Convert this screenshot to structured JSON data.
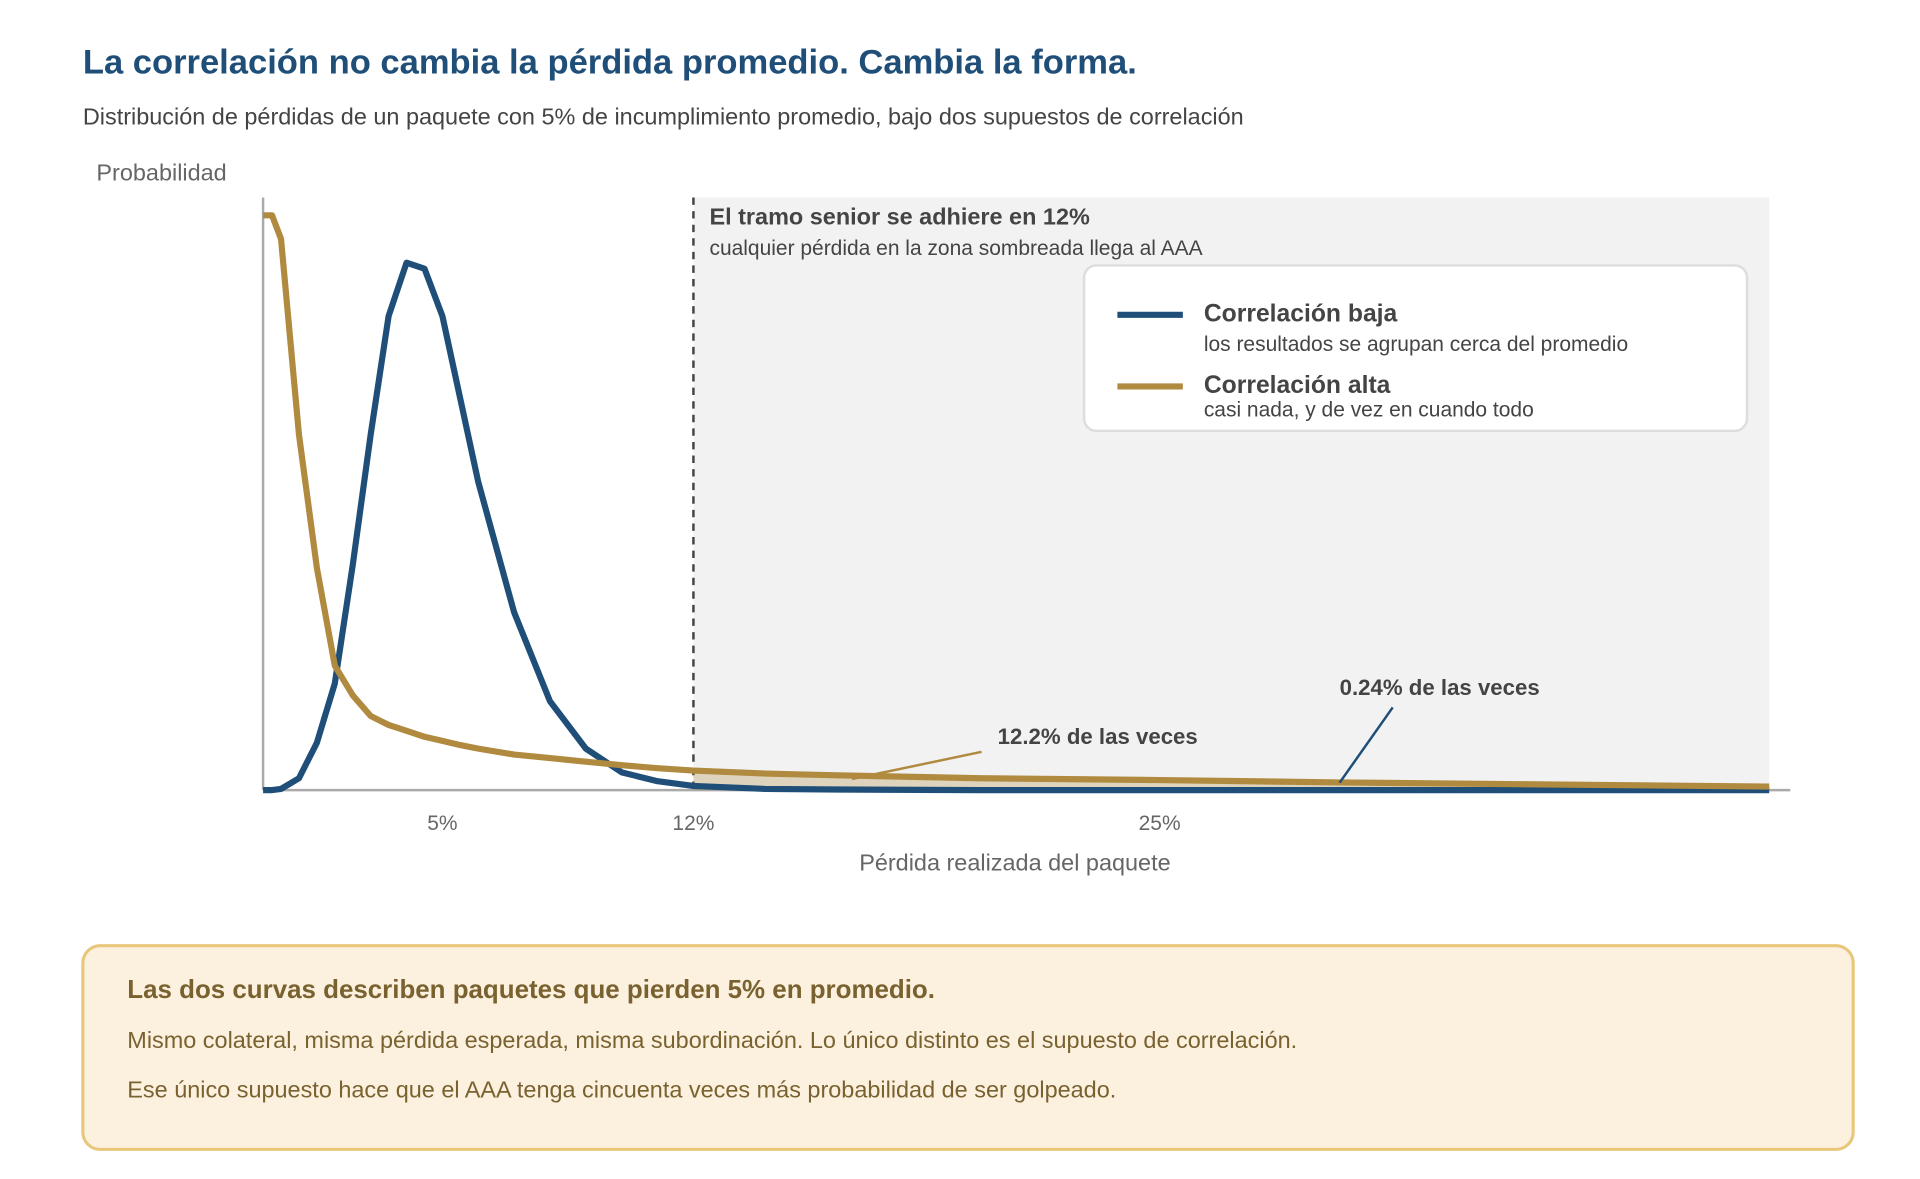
{
  "chart_data": {
    "type": "line",
    "title": "La correlación no cambia la pérdida promedio. Cambia la forma.",
    "subtitle": "Distribución de pérdidas de un paquete con 5% de incumplimiento promedio, bajo dos supuestos de correlación",
    "y_label": "Probabilidad",
    "x_label": "Pérdida realizada del paquete",
    "x": [
      0,
      0.25,
      0.5,
      1,
      1.5,
      2,
      2.5,
      3,
      3.5,
      4,
      4.5,
      5,
      5.5,
      6,
      7,
      8,
      9,
      10,
      11,
      12,
      14,
      16,
      20,
      25,
      30,
      35,
      42
    ],
    "series": [
      {
        "name": "Correlación baja",
        "note": "los resultados se agrupan cerca del promedio",
        "color": "#1f4e79",
        "values": [
          0,
          0,
          0.002,
          0.02,
          0.08,
          0.18,
          0.38,
          0.6,
          0.8,
          0.89,
          0.88,
          0.8,
          0.66,
          0.52,
          0.3,
          0.15,
          0.07,
          0.03,
          0.015,
          0.007,
          0.002,
          0.001,
          0,
          0,
          0,
          0,
          0
        ]
      },
      {
        "name": "Correlación alta",
        "note": "casi nada, y de vez en cuando todo",
        "color": "#b08a3e",
        "values": [
          0.97,
          0.97,
          0.93,
          0.6,
          0.375,
          0.21,
          0.16,
          0.125,
          0.11,
          0.1,
          0.09,
          0.083,
          0.076,
          0.07,
          0.06,
          0.054,
          0.048,
          0.042,
          0.037,
          0.033,
          0.028,
          0.025,
          0.02,
          0.017,
          0.013,
          0.01,
          0.006
        ]
      }
    ],
    "xlim": [
      0,
      42
    ],
    "ylim": [
      0,
      1
    ],
    "xticks": [
      {
        "value": 5,
        "label": "5%"
      },
      {
        "value": 12,
        "label": "12%"
      },
      {
        "value": 25,
        "label": "25%"
      }
    ],
    "threshold": 12,
    "shade_title": "El tramo senior se adhiere en 12%",
    "shade_note": "cualquier pérdida en la zona sombreada llega al AAA",
    "annotations": [
      "12.2% de las veces",
      "0.24% de las veces"
    ],
    "callout": {
      "title": "Las dos curvas describen paquetes que pierden 5% en promedio.",
      "lines": [
        "Mismo colateral, misma pérdida esperada, misma subordinación. Lo único distinto es el supuesto de correlación.",
        "Ese único supuesto hace que el AAA tenga cincuenta veces más probabilidad de ser golpeado."
      ]
    }
  }
}
